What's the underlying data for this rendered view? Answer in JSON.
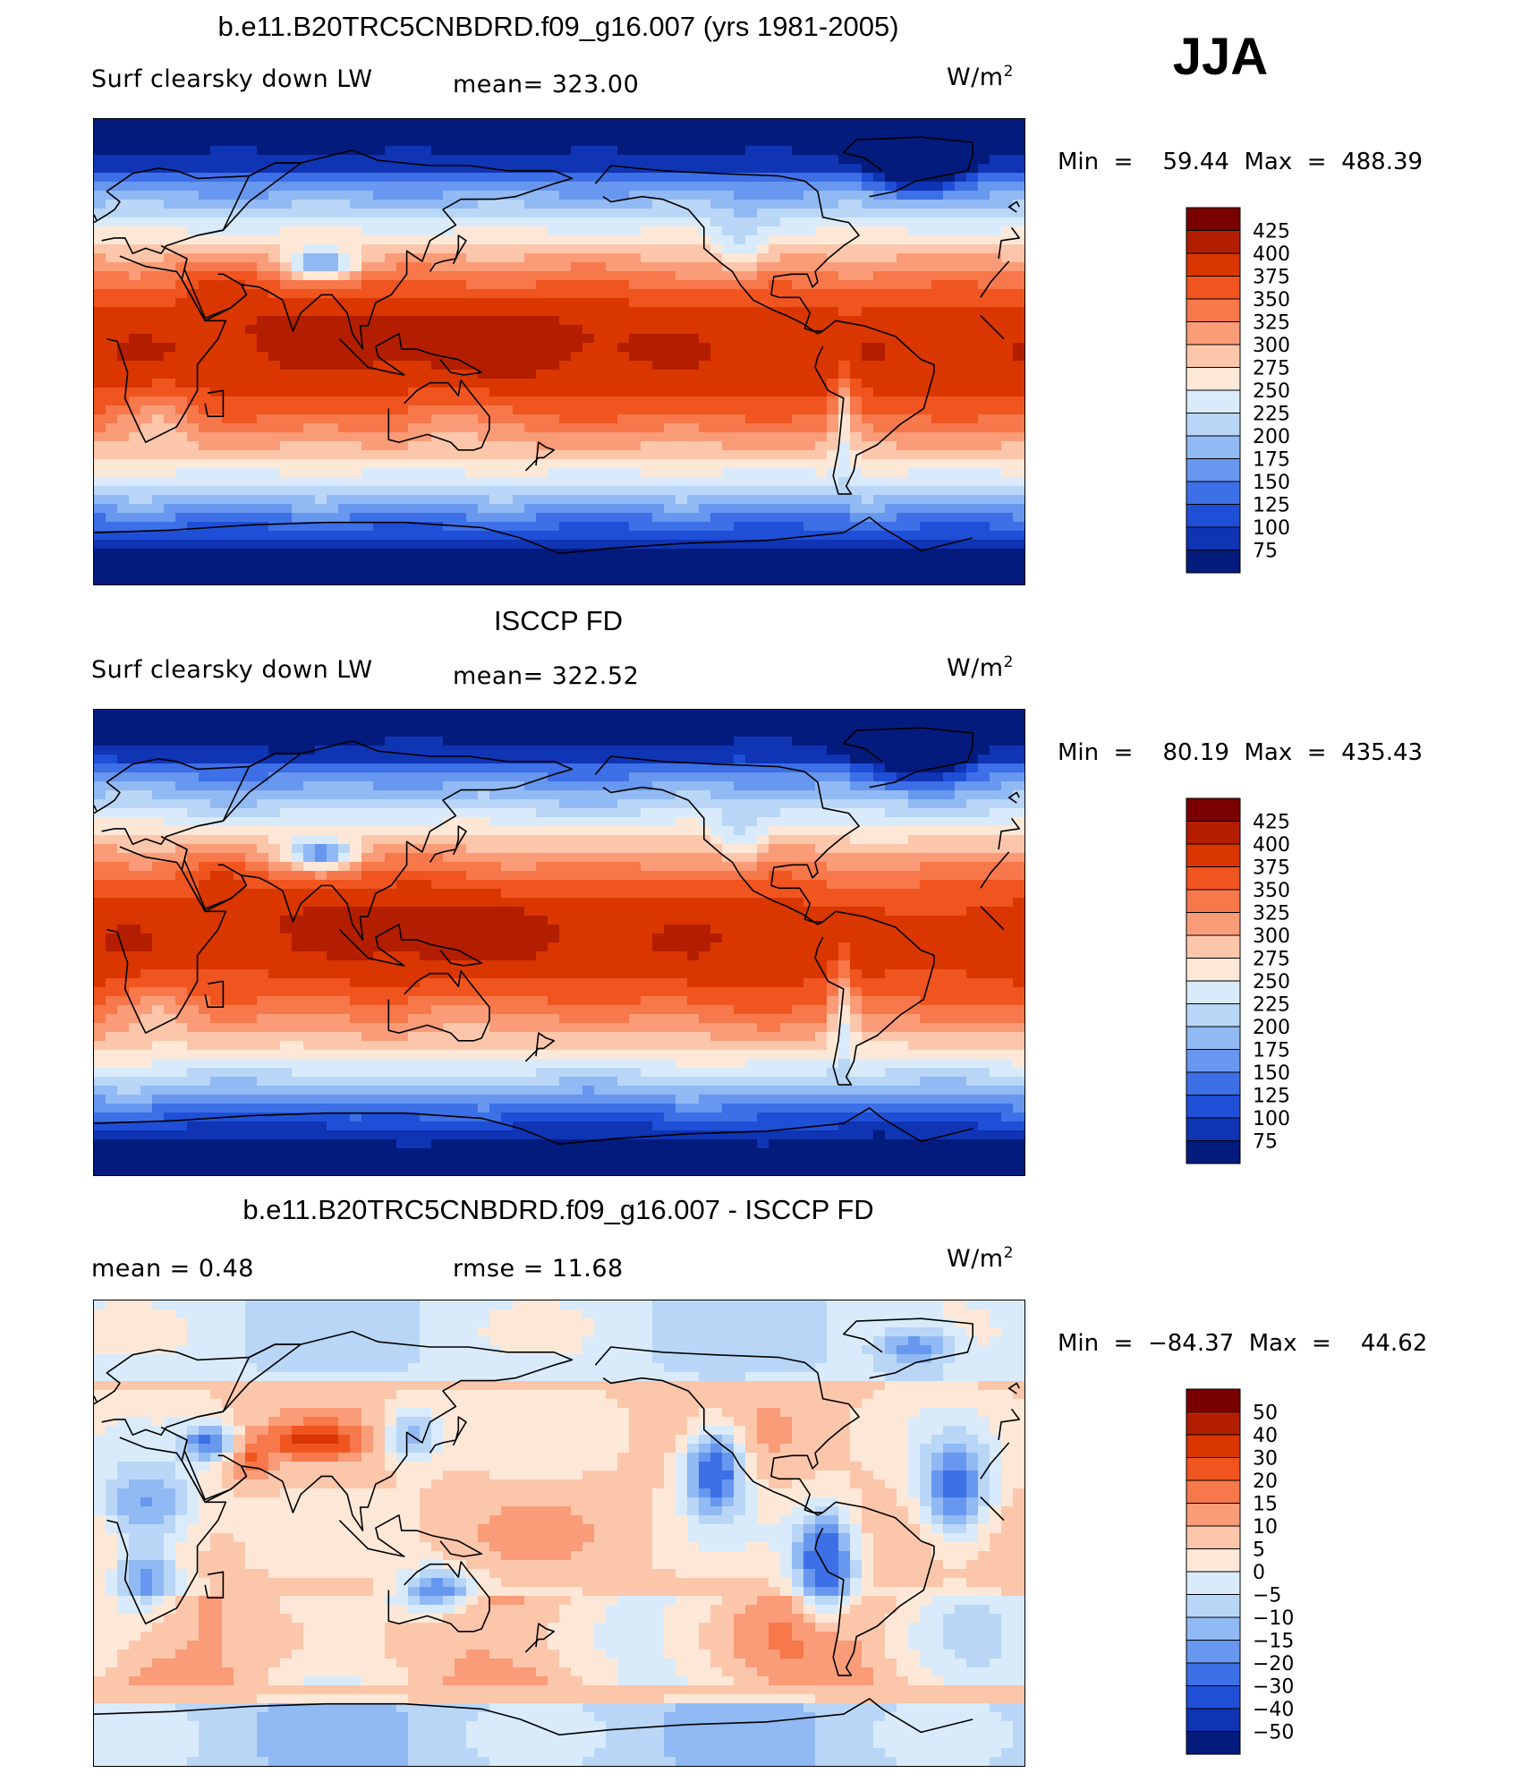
{
  "season": "JJA",
  "panels": [
    {
      "title": "b.e11.B20TRC5CNBDRD.f09_g16.007 (yrs 1981-2005)",
      "left_label": "Surf  clearsky  down  LW",
      "stat_label": "mean=  323.00",
      "unit": "W/m",
      "unit_exp": "2",
      "minmax": "Min  =    59.44  Max  =  488.39",
      "levels": [
        "425",
        "400",
        "375",
        "350",
        "325",
        "300",
        "275",
        "250",
        "225",
        "200",
        "175",
        "150",
        "125",
        "100",
        "75"
      ],
      "colors": [
        "#7a0000",
        "#b31e00",
        "#d93600",
        "#f05520",
        "#f7784a",
        "#fa9c78",
        "#fcc6ab",
        "#fde8d8",
        "#d9ebfa",
        "#b9d6f7",
        "#91b9f3",
        "#6797ee",
        "#3d6fe6",
        "#1f4fd6",
        "#0f34b4",
        "#031b7d"
      ]
    },
    {
      "title": "ISCCP FD",
      "left_label": "Surf  clearsky  down  LW",
      "stat_label": "mean=  322.52",
      "unit": "W/m",
      "unit_exp": "2",
      "minmax": "Min  =    80.19  Max  =  435.43",
      "levels": [
        "425",
        "400",
        "375",
        "350",
        "325",
        "300",
        "275",
        "250",
        "225",
        "200",
        "175",
        "150",
        "125",
        "100",
        "75"
      ],
      "colors": [
        "#7a0000",
        "#b31e00",
        "#d93600",
        "#f05520",
        "#f7784a",
        "#fa9c78",
        "#fcc6ab",
        "#fde8d8",
        "#d9ebfa",
        "#b9d6f7",
        "#91b9f3",
        "#6797ee",
        "#3d6fe6",
        "#1f4fd6",
        "#0f34b4",
        "#031b7d"
      ]
    },
    {
      "title": "b.e11.B20TRC5CNBDRD.f09_g16.007 - ISCCP FD",
      "left_label": "mean  =      0.48",
      "stat_label": "rmse  =    11.68",
      "unit": "W/m",
      "unit_exp": "2",
      "minmax": "Min  =  −84.37  Max  =    44.62",
      "levels": [
        "50",
        "40",
        "30",
        "20",
        "15",
        "10",
        "5",
        "0",
        "−5",
        "−10",
        "−15",
        "−20",
        "−30",
        "−40",
        "−50"
      ],
      "colors": [
        "#7a0000",
        "#b31e00",
        "#d93600",
        "#f05520",
        "#f7784a",
        "#fa9c78",
        "#fcc6ab",
        "#fde8d8",
        "#d9ebfa",
        "#b9d6f7",
        "#91b9f3",
        "#6797ee",
        "#3d6fe6",
        "#1f4fd6",
        "#0f34b4",
        "#031b7d"
      ]
    }
  ]
}
